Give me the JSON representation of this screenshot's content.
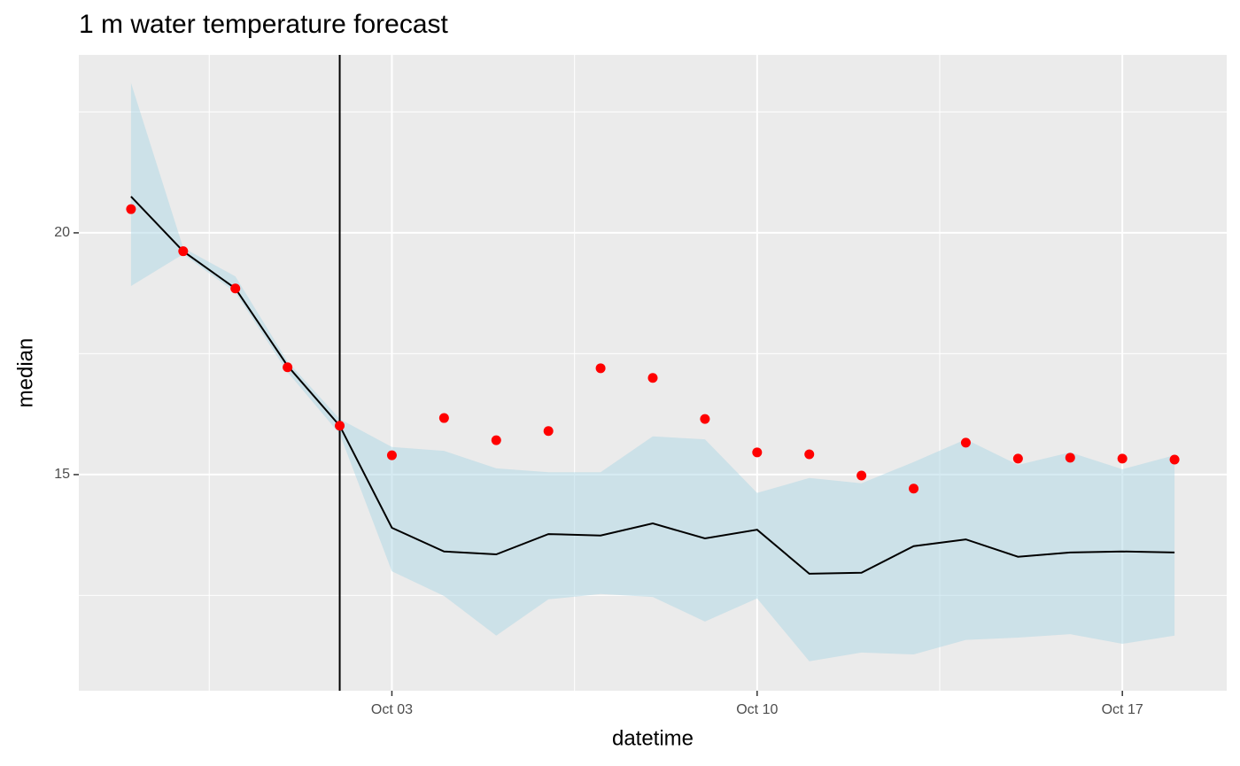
{
  "chart_data": {
    "type": "ribbon-line",
    "title": "1 m water temperature forecast",
    "xlabel": "datetime",
    "ylabel": "median",
    "x": [
      "Sep 28",
      "Sep 29",
      "Sep 30",
      "Oct 01",
      "Oct 02",
      "Oct 03",
      "Oct 04",
      "Oct 05",
      "Oct 06",
      "Oct 07",
      "Oct 08",
      "Oct 09",
      "Oct 10",
      "Oct 11",
      "Oct 12",
      "Oct 13",
      "Oct 14",
      "Oct 15",
      "Oct 16",
      "Oct 17",
      "Oct 18"
    ],
    "median": [
      20.75,
      19.62,
      18.85,
      17.25,
      16.01,
      13.9,
      13.41,
      13.35,
      13.77,
      13.74,
      13.99,
      13.68,
      13.86,
      12.95,
      12.97,
      13.52,
      13.66,
      13.3,
      13.39,
      13.41,
      13.39
    ],
    "upper": [
      23.1,
      19.69,
      19.1,
      17.34,
      16.15,
      15.57,
      15.49,
      15.13,
      15.05,
      15.05,
      15.79,
      15.73,
      14.62,
      14.93,
      14.82,
      15.26,
      15.73,
      15.2,
      15.46,
      15.11,
      15.4
    ],
    "lower": [
      18.9,
      19.56,
      18.77,
      17.12,
      15.84,
      13.0,
      12.49,
      11.67,
      12.42,
      12.53,
      12.47,
      11.96,
      12.44,
      11.14,
      11.32,
      11.28,
      11.58,
      11.63,
      11.7,
      11.5,
      11.67
    ],
    "observation": [
      20.49,
      19.62,
      18.85,
      17.22,
      16.01,
      15.4,
      16.17,
      15.71,
      15.9,
      17.2,
      17.0,
      16.15,
      15.46,
      15.42,
      14.98,
      14.71,
      15.66,
      15.33,
      15.35,
      15.33,
      15.31
    ],
    "line_color": "#000000",
    "ribbon_color": "#add8e6",
    "point_color": "#ff0000",
    "vline": "Oct 02",
    "xticks": [
      "Oct 03",
      "Oct 10",
      "Oct 17"
    ],
    "ylim": [
      10.53,
      23.68
    ],
    "yticks": [
      15,
      20
    ],
    "yminor": [
      12.5,
      17.5,
      22.5
    ],
    "grid": true
  }
}
